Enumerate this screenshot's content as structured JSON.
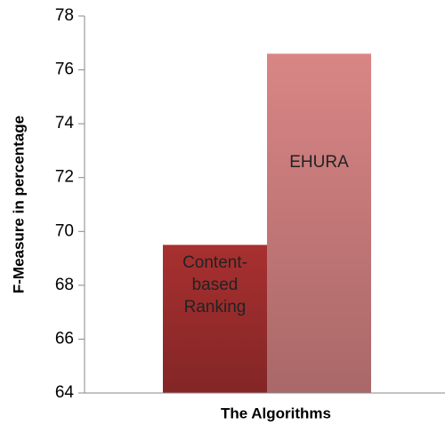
{
  "chart_data": {
    "type": "bar",
    "categories": [
      "Content-based Ranking",
      "EHURA"
    ],
    "values": [
      69.5,
      76.6
    ],
    "colors": [
      "#a83030",
      "#d98585"
    ],
    "ylim": [
      64,
      78
    ],
    "yticks": [
      64,
      66,
      68,
      70,
      72,
      74,
      76,
      78
    ],
    "xlabel": "The Algorithms",
    "ylabel": "F-Measure in percentage"
  }
}
